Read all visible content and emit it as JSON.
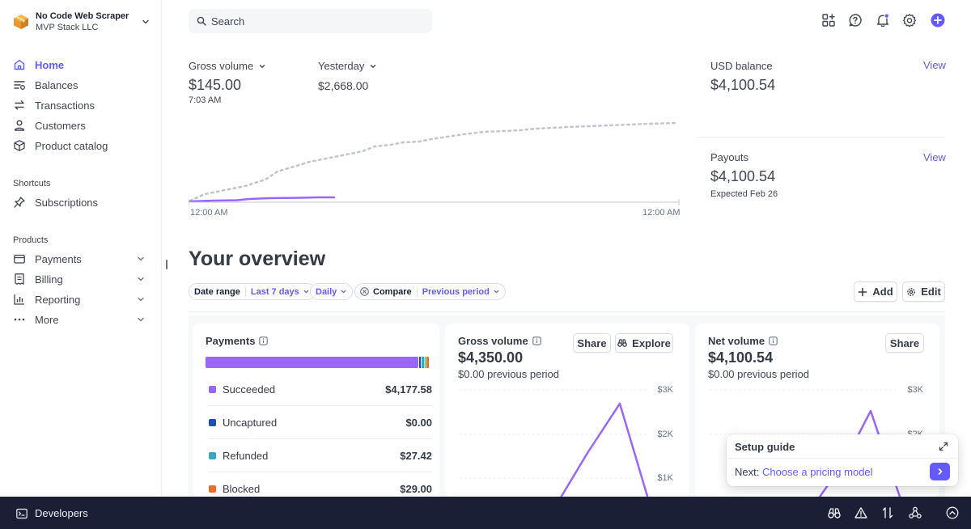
{
  "account": {
    "name": "No Code Web Scraper",
    "org": "MVP Stack LLC"
  },
  "sidebar": {
    "main": [
      {
        "label": "Home",
        "icon": "home-icon",
        "active": true
      },
      {
        "label": "Balances",
        "icon": "balances-icon"
      },
      {
        "label": "Transactions",
        "icon": "transactions-icon"
      },
      {
        "label": "Customers",
        "icon": "customers-icon"
      },
      {
        "label": "Product catalog",
        "icon": "product-catalog-icon"
      }
    ],
    "shortcuts_label": "Shortcuts",
    "shortcuts": [
      {
        "label": "Subscriptions",
        "icon": "pin-icon"
      }
    ],
    "products_label": "Products",
    "products": [
      {
        "label": "Payments",
        "icon": "payments-icon"
      },
      {
        "label": "Billing",
        "icon": "billing-icon"
      },
      {
        "label": "Reporting",
        "icon": "reporting-icon"
      },
      {
        "label": "More",
        "icon": "more-icon"
      }
    ]
  },
  "header": {
    "search_placeholder": "Search"
  },
  "today": {
    "metric_label": "Gross volume",
    "value": "$145.00",
    "time": "7:03 AM",
    "compare_label": "Yesterday",
    "compare_value": "$2,668.00",
    "axis_start": "12:00 AM",
    "axis_end": "12:00 AM"
  },
  "balances": {
    "usd_label": "USD balance",
    "usd_value": "$4,100.54",
    "usd_link": "View",
    "payouts_label": "Payouts",
    "payouts_value": "$4,100.54",
    "payouts_sub": "Expected Feb 26",
    "payouts_link": "View"
  },
  "overview": {
    "title": "Your overview",
    "filters": {
      "date_range_label": "Date range",
      "date_range_value": "Last 7 days",
      "interval_value": "Daily",
      "compare_label": "Compare",
      "compare_value": "Previous period"
    },
    "add_label": "Add",
    "edit_label": "Edit"
  },
  "payments_card": {
    "title": "Payments",
    "rows": [
      {
        "label": "Succeeded",
        "amount": "$4,177.58",
        "color": "#9966ff"
      },
      {
        "label": "Uncaptured",
        "amount": "$0.00",
        "color": "#1d4fb6"
      },
      {
        "label": "Refunded",
        "amount": "$27.42",
        "color": "#37a7c4"
      },
      {
        "label": "Blocked",
        "amount": "$29.00",
        "color": "#e56f2b"
      }
    ]
  },
  "gross_card": {
    "title": "Gross volume",
    "value": "$4,350.00",
    "sub": "$0.00 previous period",
    "share_label": "Share",
    "explore_label": "Explore",
    "ticks": [
      "$3K",
      "$2K",
      "$1K"
    ]
  },
  "net_card": {
    "title": "Net volume",
    "value": "$4,100.54",
    "sub": "$0.00 previous period",
    "share_label": "Share",
    "ticks": [
      "$3K",
      "$2K"
    ]
  },
  "setup_guide": {
    "title": "Setup guide",
    "next_prefix": "Next:",
    "next_link": "Choose a pricing model"
  },
  "bottom": {
    "developers_label": "Developers"
  },
  "colors": {
    "accent": "#635bff",
    "bar_dark": "#1a1f36"
  }
}
